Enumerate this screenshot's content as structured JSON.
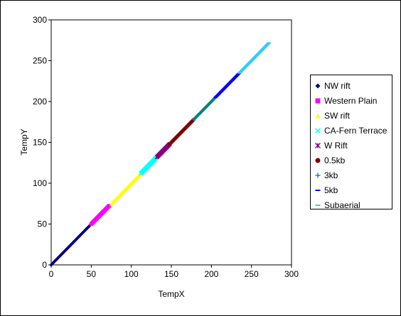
{
  "chart_data": {
    "type": "scatter",
    "title": "",
    "xlabel": "TempX",
    "ylabel": "TempY",
    "xlim": [
      0,
      300
    ],
    "ylim": [
      0,
      300
    ],
    "xticks": [
      "0",
      "50",
      "100",
      "150",
      "200",
      "250",
      "300"
    ],
    "yticks": [
      "0",
      "50",
      "100",
      "150",
      "200",
      "250",
      "300"
    ],
    "grid": false,
    "legend_position": "right",
    "series": [
      {
        "name": "NW rift",
        "marker": "diamond",
        "color": "#000080",
        "range": [
          0,
          50
        ]
      },
      {
        "name": "Western Plain",
        "marker": "square",
        "color": "#ff00ff",
        "range": [
          50,
          73
        ]
      },
      {
        "name": "SW rift",
        "marker": "triangle",
        "color": "#ffff00",
        "range": [
          75,
          112
        ]
      },
      {
        "name": "CA-Fern Terrace",
        "marker": "x",
        "color": "#00ffff",
        "range": [
          112,
          133
        ]
      },
      {
        "name": "W Rift",
        "marker": "star",
        "color": "#800080",
        "range": [
          132,
          148
        ]
      },
      {
        "name": "0.5kb",
        "marker": "circle",
        "color": "#800000",
        "range": [
          148,
          178
        ]
      },
      {
        "name": "3kb",
        "marker": "plus",
        "color": "#008080",
        "range": [
          178,
          205
        ]
      },
      {
        "name": "5kb",
        "marker": "dash",
        "color": "#0000ff",
        "range": [
          205,
          235
        ]
      },
      {
        "name": "Subaerial",
        "marker": "dash",
        "color": "#33ccff",
        "range": [
          235,
          272
        ]
      }
    ]
  }
}
